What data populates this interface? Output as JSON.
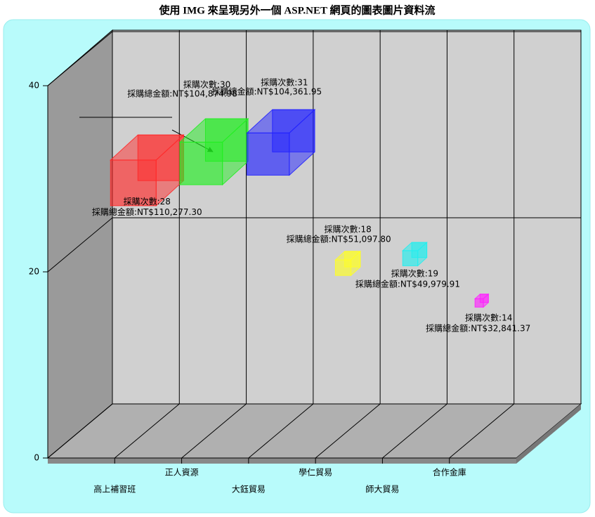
{
  "chart_data": {
    "type": "bubble3d",
    "title": "使用 IMG 來呈現另外一個 ASP.NET 網頁的圖表圖片資料流",
    "categories": [
      "高上補習班",
      "正人資源",
      "大鈺貿易",
      "學仁貿易",
      "師大貿易",
      "合作金庫"
    ],
    "values": [
      28,
      30,
      31,
      18,
      19,
      14
    ],
    "value_labels": [
      "採購次數:28",
      "採購次數:30",
      "採購次數:31",
      "採購次數:18",
      "採購次數:19",
      "採購次數:14"
    ],
    "sizes": [
      110277.3,
      104874.98,
      104361.95,
      51097.8,
      49979.91,
      32841.37
    ],
    "size_labels": [
      "採購總金額:NT$110,277.30",
      "採購總金額:NT$104,874.98",
      "採購總金額:NT$104,361.95",
      "採購總金額:NT$51,097.80",
      "採購總金額:NT$49,979.91",
      "採購總金額:NT$32,841.37"
    ],
    "colors": [
      "#ff2a2a",
      "#22ee22",
      "#2222ff",
      "#ffff22",
      "#22eeee",
      "#ff22ff"
    ],
    "ylim": [
      0,
      40
    ],
    "yticks": [
      0,
      20,
      40
    ],
    "grid": true
  }
}
